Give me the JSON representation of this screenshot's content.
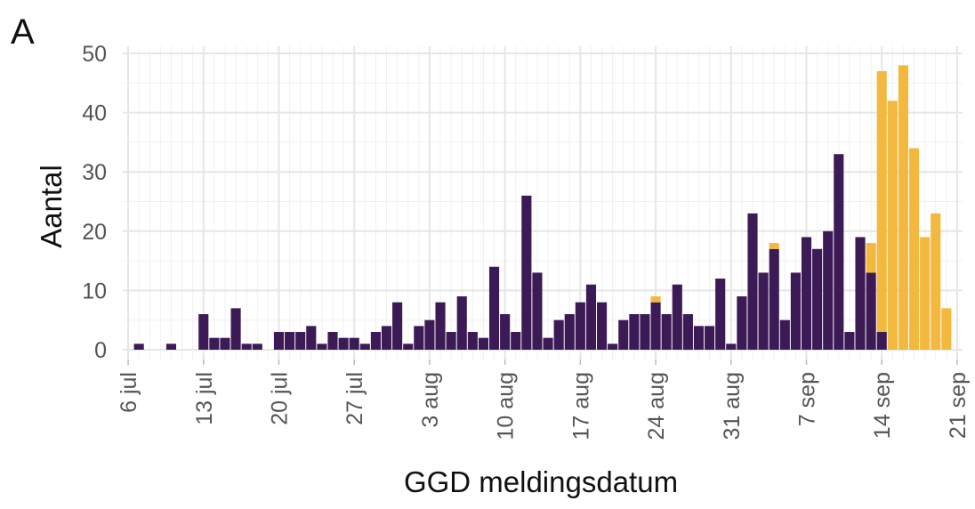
{
  "panel_label": "A",
  "chart_data": {
    "type": "bar",
    "stacked": true,
    "xlabel": "GGD meldingsdatum",
    "ylabel": "Aantal",
    "ylim": [
      0,
      50
    ],
    "y_ticks": [
      0,
      10,
      20,
      30,
      40,
      50
    ],
    "x_tick_labels": [
      "6 jul",
      "13 jul",
      "20 jul",
      "27 jul",
      "3 aug",
      "10 aug",
      "17 aug",
      "24 aug",
      "31 aug",
      "7 sep",
      "14 sep",
      "21 sep"
    ],
    "x_start": "2020-07-06",
    "categories": [
      "2020-07-06",
      "2020-07-07",
      "2020-07-08",
      "2020-07-09",
      "2020-07-10",
      "2020-07-11",
      "2020-07-12",
      "2020-07-13",
      "2020-07-14",
      "2020-07-15",
      "2020-07-16",
      "2020-07-17",
      "2020-07-18",
      "2020-07-19",
      "2020-07-20",
      "2020-07-21",
      "2020-07-22",
      "2020-07-23",
      "2020-07-24",
      "2020-07-25",
      "2020-07-26",
      "2020-07-27",
      "2020-07-28",
      "2020-07-29",
      "2020-07-30",
      "2020-07-31",
      "2020-08-01",
      "2020-08-02",
      "2020-08-03",
      "2020-08-04",
      "2020-08-05",
      "2020-08-06",
      "2020-08-07",
      "2020-08-08",
      "2020-08-09",
      "2020-08-10",
      "2020-08-11",
      "2020-08-12",
      "2020-08-13",
      "2020-08-14",
      "2020-08-15",
      "2020-08-16",
      "2020-08-17",
      "2020-08-18",
      "2020-08-19",
      "2020-08-20",
      "2020-08-21",
      "2020-08-22",
      "2020-08-23",
      "2020-08-24",
      "2020-08-25",
      "2020-08-26",
      "2020-08-27",
      "2020-08-28",
      "2020-08-29",
      "2020-08-30",
      "2020-08-31",
      "2020-09-01",
      "2020-09-02",
      "2020-09-03",
      "2020-09-04",
      "2020-09-05",
      "2020-09-06",
      "2020-09-07",
      "2020-09-08",
      "2020-09-09",
      "2020-09-10",
      "2020-09-11",
      "2020-09-12",
      "2020-09-13",
      "2020-09-14",
      "2020-09-15",
      "2020-09-16",
      "2020-09-17",
      "2020-09-18",
      "2020-09-19",
      "2020-09-20",
      "2020-09-21"
    ],
    "series": [
      {
        "color": "#3c1a55",
        "values": [
          0,
          1,
          0,
          0,
          1,
          0,
          0,
          6,
          2,
          2,
          7,
          1,
          1,
          0,
          3,
          3,
          3,
          4,
          1,
          3,
          2,
          2,
          1,
          3,
          4,
          8,
          1,
          4,
          5,
          8,
          3,
          9,
          3,
          2,
          14,
          6,
          3,
          26,
          13,
          2,
          5,
          6,
          8,
          11,
          8,
          1,
          5,
          6,
          6,
          8,
          6,
          11,
          6,
          4,
          4,
          12,
          1,
          9,
          23,
          13,
          17,
          5,
          13,
          19,
          17,
          20,
          33,
          3,
          19,
          13,
          3,
          0,
          0,
          0,
          0,
          0,
          0,
          0
        ]
      },
      {
        "color": "#f3b93f",
        "values": [
          0,
          0,
          0,
          0,
          0,
          0,
          0,
          0,
          0,
          0,
          0,
          0,
          0,
          0,
          0,
          0,
          0,
          0,
          0,
          0,
          0,
          0,
          0,
          0,
          0,
          0,
          0,
          0,
          0,
          0,
          0,
          0,
          0,
          0,
          0,
          0,
          0,
          0,
          0,
          0,
          0,
          0,
          0,
          0,
          0,
          0,
          0,
          0,
          0,
          1,
          0,
          0,
          0,
          0,
          0,
          0,
          0,
          0,
          0,
          0,
          1,
          0,
          0,
          0,
          0,
          0,
          0,
          0,
          0,
          5,
          44,
          42,
          48,
          34,
          19,
          23,
          7,
          0
        ]
      }
    ],
    "grid": true,
    "legend": "none"
  }
}
